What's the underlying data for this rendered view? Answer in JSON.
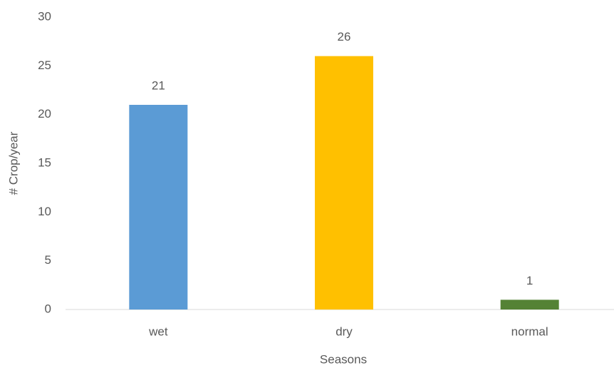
{
  "chart_data": {
    "type": "bar",
    "categories": [
      "wet",
      "dry",
      "normal"
    ],
    "values": [
      21,
      26,
      1
    ],
    "colors": [
      "#5b9bd5",
      "#ffc000",
      "#548235"
    ],
    "ylim": [
      0,
      30
    ],
    "yticks": [
      0,
      5,
      10,
      15,
      20,
      25,
      30
    ],
    "grid": false,
    "y_label": "# Crop/year",
    "x_label": "Seasons"
  }
}
